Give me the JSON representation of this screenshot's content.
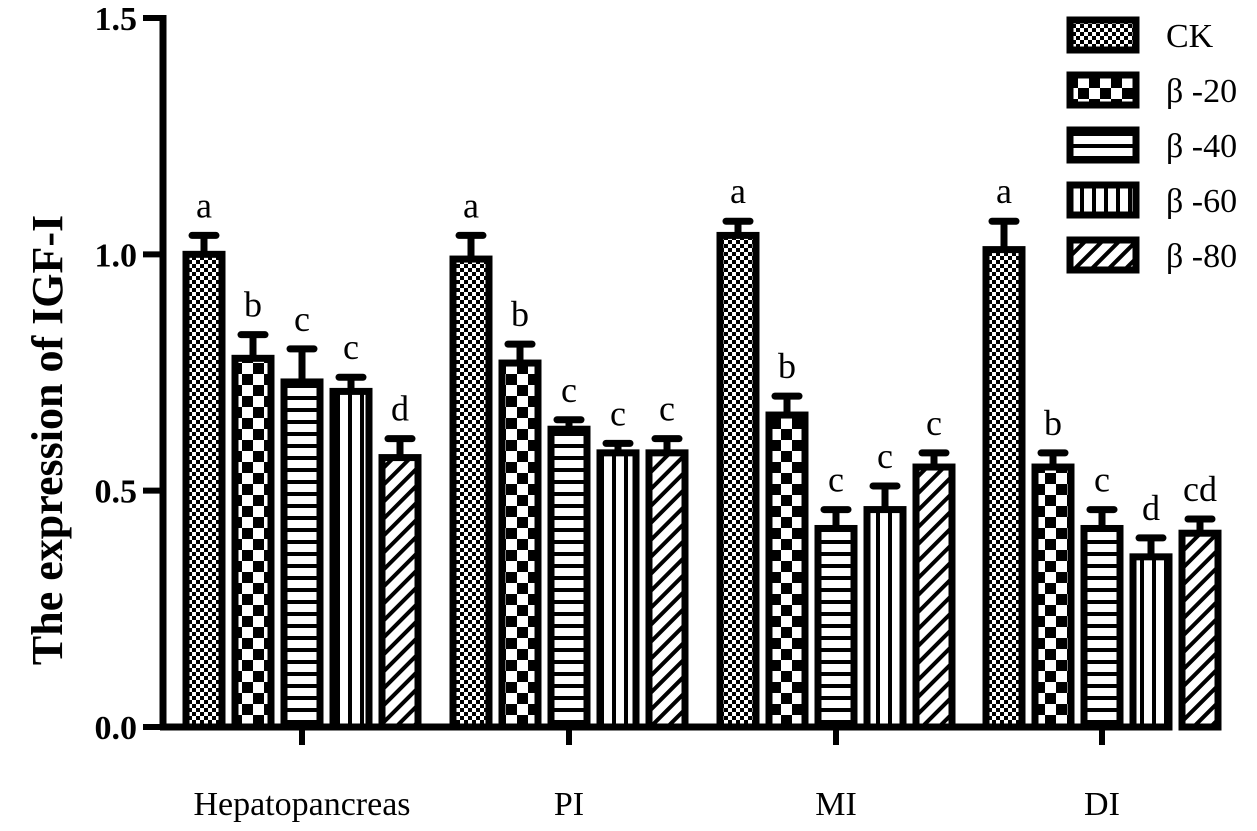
{
  "chart_data": {
    "type": "bar",
    "ylabel": "The expression of IGF-I",
    "ylim": [
      0,
      1.5
    ],
    "yticks": [
      "0.0",
      "0.5",
      "1.0",
      "1.5"
    ],
    "yticks_values": [
      0,
      0.5,
      1.0,
      1.5
    ],
    "categories": [
      "Hepatopancreas",
      "PI",
      "MI",
      "DI"
    ],
    "legend_position": "top-right",
    "series": [
      {
        "name": "CK",
        "pattern": "checker-fine",
        "values": [
          1.0,
          0.99,
          1.04,
          1.01
        ],
        "errors": [
          0.04,
          0.05,
          0.03,
          0.06
        ],
        "labels": [
          "a",
          "a",
          "a",
          "a"
        ]
      },
      {
        "name": "β -20",
        "pattern": "checker-big",
        "values": [
          0.78,
          0.77,
          0.66,
          0.55
        ],
        "errors": [
          0.05,
          0.04,
          0.04,
          0.03
        ],
        "labels": [
          "b",
          "b",
          "b",
          "b"
        ]
      },
      {
        "name": "β -40",
        "pattern": "horizontal",
        "values": [
          0.73,
          0.63,
          0.42,
          0.42
        ],
        "errors": [
          0.07,
          0.02,
          0.04,
          0.04
        ],
        "labels": [
          "c",
          "c",
          "c",
          "c"
        ]
      },
      {
        "name": "β -60",
        "pattern": "vertical",
        "values": [
          0.71,
          0.58,
          0.46,
          0.36
        ],
        "errors": [
          0.03,
          0.02,
          0.05,
          0.04
        ],
        "labels": [
          "c",
          "c",
          "c",
          "d"
        ]
      },
      {
        "name": "β -80",
        "pattern": "diagonal",
        "values": [
          0.57,
          0.58,
          0.55,
          0.41
        ],
        "errors": [
          0.04,
          0.03,
          0.03,
          0.03
        ],
        "labels": [
          "d",
          "c",
          "c",
          "cd"
        ]
      }
    ]
  }
}
